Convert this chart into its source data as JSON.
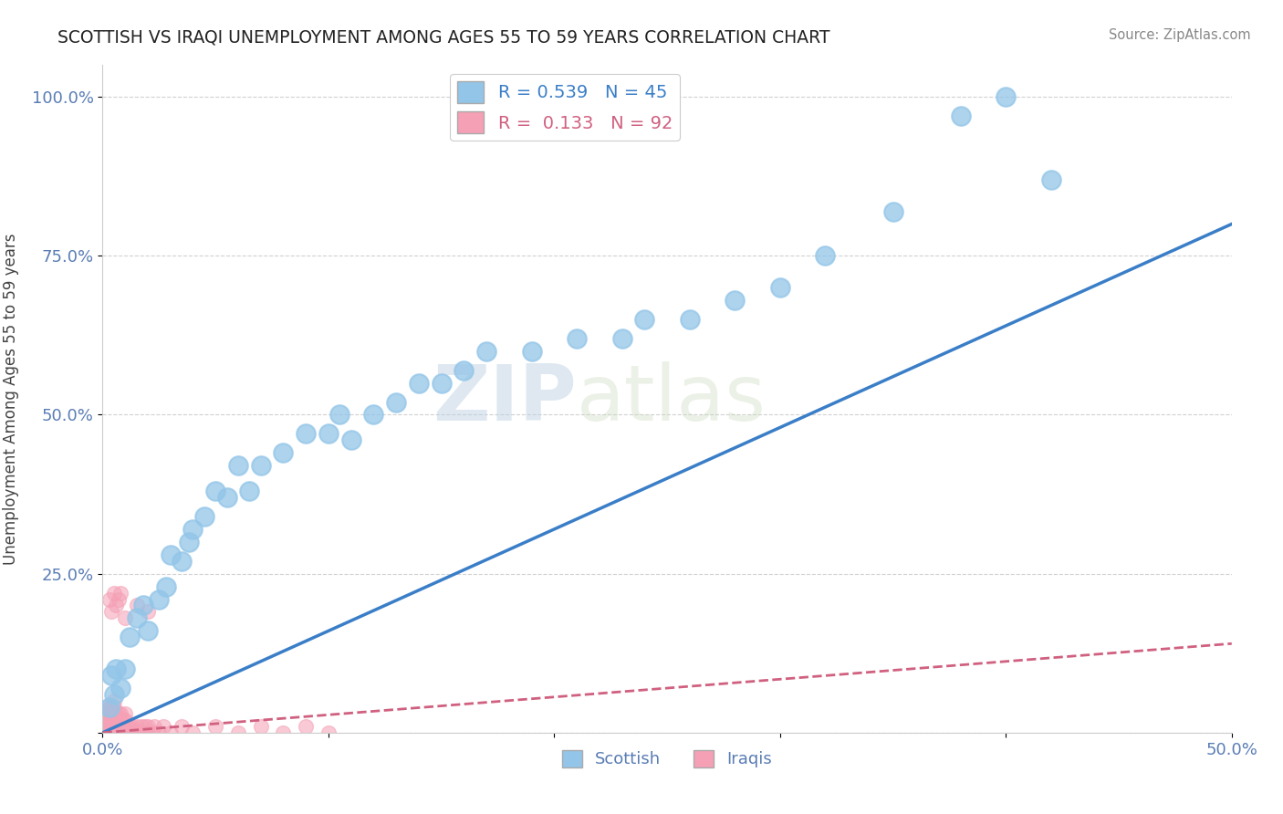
{
  "title": "SCOTTISH VS IRAQI UNEMPLOYMENT AMONG AGES 55 TO 59 YEARS CORRELATION CHART",
  "source": "Source: ZipAtlas.com",
  "ylabel": "Unemployment Among Ages 55 to 59 years",
  "xlim": [
    0.0,
    0.5
  ],
  "ylim": [
    0.0,
    1.05
  ],
  "xticks": [
    0.0,
    0.1,
    0.2,
    0.3,
    0.4,
    0.5
  ],
  "xticklabels": [
    "0.0%",
    "",
    "",
    "",
    "",
    "50.0%"
  ],
  "ytick_positions": [
    0.0,
    0.25,
    0.5,
    0.75,
    1.0
  ],
  "yticklabels": [
    "",
    "25.0%",
    "50.0%",
    "75.0%",
    "100.0%"
  ],
  "r_scottish": 0.539,
  "n_scottish": 45,
  "r_iraqi": 0.133,
  "n_iraqi": 92,
  "scottish_color": "#92c5e8",
  "iraqi_color": "#f5a0b5",
  "scottish_line_color": "#3a7ec8",
  "iraqi_line_color": "#d06080",
  "background_color": "#ffffff",
  "grid_color": "#cccccc",
  "scottish_x": [
    0.003,
    0.004,
    0.005,
    0.006,
    0.008,
    0.01,
    0.012,
    0.015,
    0.018,
    0.02,
    0.025,
    0.028,
    0.03,
    0.035,
    0.038,
    0.04,
    0.045,
    0.05,
    0.055,
    0.06,
    0.065,
    0.07,
    0.08,
    0.09,
    0.1,
    0.105,
    0.11,
    0.12,
    0.13,
    0.14,
    0.15,
    0.16,
    0.17,
    0.19,
    0.21,
    0.23,
    0.24,
    0.26,
    0.28,
    0.3,
    0.32,
    0.35,
    0.38,
    0.4,
    0.42
  ],
  "scottish_y": [
    0.04,
    0.09,
    0.06,
    0.1,
    0.07,
    0.1,
    0.15,
    0.18,
    0.2,
    0.16,
    0.21,
    0.23,
    0.28,
    0.27,
    0.3,
    0.32,
    0.34,
    0.38,
    0.37,
    0.42,
    0.38,
    0.42,
    0.44,
    0.47,
    0.47,
    0.5,
    0.46,
    0.5,
    0.52,
    0.55,
    0.55,
    0.57,
    0.6,
    0.6,
    0.62,
    0.62,
    0.65,
    0.65,
    0.68,
    0.7,
    0.75,
    0.82,
    0.97,
    1.0,
    0.87
  ],
  "scottish_line_x": [
    0.0,
    0.5
  ],
  "scottish_line_y": [
    0.0,
    0.8
  ],
  "iraqi_line_x": [
    0.0,
    0.5
  ],
  "iraqi_line_y": [
    0.0,
    0.14
  ],
  "iraqi_x": [
    0.001,
    0.001,
    0.001,
    0.001,
    0.002,
    0.002,
    0.002,
    0.002,
    0.002,
    0.003,
    0.003,
    0.003,
    0.003,
    0.003,
    0.004,
    0.004,
    0.004,
    0.004,
    0.004,
    0.005,
    0.005,
    0.005,
    0.005,
    0.005,
    0.005,
    0.006,
    0.006,
    0.006,
    0.006,
    0.007,
    0.007,
    0.007,
    0.007,
    0.008,
    0.008,
    0.008,
    0.008,
    0.009,
    0.009,
    0.009,
    0.01,
    0.01,
    0.01,
    0.01,
    0.011,
    0.011,
    0.012,
    0.012,
    0.013,
    0.013,
    0.014,
    0.015,
    0.015,
    0.016,
    0.017,
    0.018,
    0.019,
    0.02,
    0.02,
    0.022,
    0.023,
    0.025,
    0.027,
    0.03,
    0.035,
    0.04,
    0.05,
    0.06,
    0.07,
    0.08,
    0.09,
    0.1,
    0.01,
    0.015,
    0.02,
    0.005,
    0.006,
    0.007,
    0.008,
    0.003,
    0.004,
    0.002,
    0.003,
    0.004,
    0.005,
    0.006,
    0.007,
    0.008,
    0.009,
    0.01,
    0.012,
    0.014
  ],
  "iraqi_y": [
    0.0,
    0.01,
    0.02,
    0.03,
    0.0,
    0.01,
    0.02,
    0.03,
    0.04,
    0.0,
    0.01,
    0.02,
    0.03,
    0.04,
    0.0,
    0.01,
    0.02,
    0.03,
    0.04,
    0.0,
    0.01,
    0.02,
    0.03,
    0.04,
    0.05,
    0.0,
    0.01,
    0.02,
    0.03,
    0.0,
    0.01,
    0.02,
    0.03,
    0.0,
    0.01,
    0.02,
    0.03,
    0.0,
    0.01,
    0.02,
    0.0,
    0.01,
    0.02,
    0.03,
    0.0,
    0.01,
    0.0,
    0.01,
    0.0,
    0.01,
    0.0,
    0.0,
    0.01,
    0.0,
    0.01,
    0.0,
    0.01,
    0.0,
    0.01,
    0.0,
    0.01,
    0.0,
    0.01,
    0.0,
    0.01,
    0.0,
    0.01,
    0.0,
    0.01,
    0.0,
    0.01,
    0.0,
    0.18,
    0.2,
    0.19,
    0.22,
    0.2,
    0.21,
    0.22,
    0.21,
    0.19,
    0.0,
    0.0,
    0.0,
    0.0,
    0.0,
    0.0,
    0.0,
    0.0,
    0.0,
    0.0,
    0.0
  ]
}
